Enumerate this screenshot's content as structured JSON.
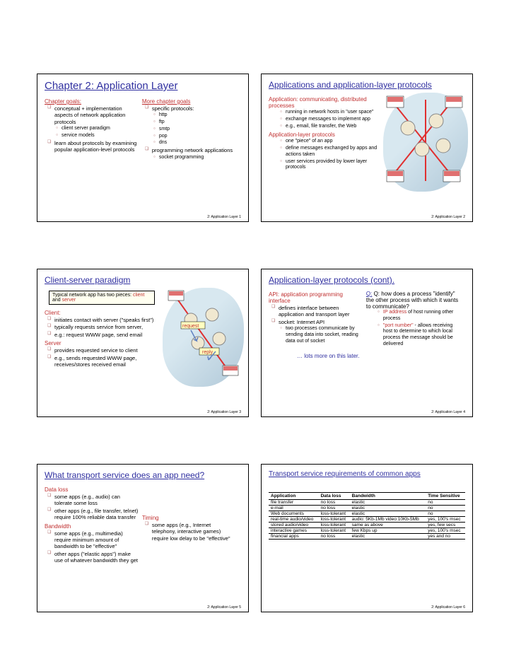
{
  "footer_label": "2: Application Layer",
  "slide1": {
    "title": "Chapter 2: Application Layer",
    "left_head": "Chapter goals:",
    "l1": "conceptual + implementation aspects of network application protocols",
    "l1a": "client server paradigm",
    "l1b": "service models",
    "l2": "learn about protocols by examining popular application-level protocols",
    "right_head": "More chapter goals",
    "r1": "specific protocols:",
    "r1a": "http",
    "r1b": "ftp",
    "r1c": "smtp",
    "r1d": "pop",
    "r1e": "dns",
    "r2": "programming network applications",
    "r2a": "socket programming",
    "num": "1"
  },
  "slide2": {
    "title": "Applications and application-layer protocols",
    "h1": "Application: communicating, distributed processes",
    "a1": "running in network hosts in \"user space\"",
    "a2": "exchange messages to implement app",
    "a3": "e.g., email, file transfer, the Web",
    "h2": "Application-layer protocols",
    "b1": "one \"piece\" of an app",
    "b2": "define messages exchanged by apps and actions taken",
    "b3": "user services provided by lower layer protocols",
    "num": "2"
  },
  "slide3": {
    "title": "Client-server paradigm",
    "callout": "Typical network app has two pieces: client and server",
    "h1": "Client:",
    "c1": "initiates contact with server (\"speaks first\")",
    "c2": "typically requests service from server,",
    "c3": "e.g.: request WWW page, send email",
    "h2": "Server",
    "s1": "provides requested service to client",
    "s2": "e.g., sends requested WWW page, receives/stores received email",
    "req_label": "request",
    "rep_label": "reply",
    "num": "3"
  },
  "slide4": {
    "title": "Application-layer protocols (cont).",
    "lh": "API: application programming interface",
    "l1": "defines interface between application and transport layer",
    "l2": "socket: Internet API",
    "l2a": "two processes communicate by sending data into socket, reading data out of socket",
    "rh": "Q: how does a process \"identify\" the other process with which it wants to communicate?",
    "r1": "IP address of host running other process",
    "r2": "\"port number\" - allows receiving host to determine to which local process the message should be delivered",
    "more": "… lots more on this later.",
    "num": "4"
  },
  "slide5": {
    "title": "What transport service does an app need?",
    "h1": "Data loss",
    "d1": "some apps (e.g., audio) can tolerate some loss",
    "d2": "other apps (e.g., file transfer, telnet) require 100% reliable data transfer",
    "h2": "Bandwidth",
    "b1": "some apps (e.g., multimedia) require minimum amount of bandwidth to be \"effective\"",
    "b2": "other apps (\"elastic apps\") make use of whatever bandwidth they get",
    "h3": "Timing",
    "t1": "some apps (e.g., Internet telephony, interactive games) require low delay to be \"effective\"",
    "num": "5"
  },
  "slide6": {
    "title": "Transport service requirements of common apps",
    "cols": {
      "c1": "Application",
      "c2": "Data loss",
      "c3": "Bandwidth",
      "c4": "Time Sensitive"
    },
    "rows": [
      [
        "file transfer",
        "no loss",
        "elastic",
        "no"
      ],
      [
        "e-mail",
        "no loss",
        "elastic",
        "no"
      ],
      [
        "Web documents",
        "loss-tolerant",
        "elastic",
        "no"
      ],
      [
        "real-time audio/video",
        "loss-tolerant",
        "audio: 5Kb-1Mb video:10Kb-5Mb",
        "yes, 100's msec"
      ],
      [
        "stored audio/video",
        "loss-tolerant",
        "same as above",
        "yes, few secs"
      ],
      [
        "interactive games",
        "loss-tolerant",
        "few Kbps up",
        "yes, 100's msec"
      ],
      [
        "financial apps",
        "no loss",
        "elastic",
        "yes and no"
      ]
    ],
    "num": "6"
  }
}
